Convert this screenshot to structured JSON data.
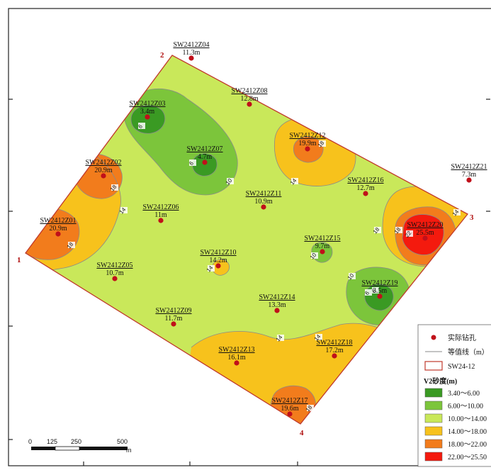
{
  "corners": [
    "1",
    "2",
    "3",
    "4"
  ],
  "boreholes": [
    {
      "id": "SW2412Z01",
      "value": "20.9m"
    },
    {
      "id": "SW2412Z02",
      "value": "20.9m"
    },
    {
      "id": "SW2412Z03",
      "value": "3.4m"
    },
    {
      "id": "SW2412Z04",
      "value": "11.3m"
    },
    {
      "id": "SW2412Z05",
      "value": "10.7m"
    },
    {
      "id": "SW2412Z06",
      "value": "11m"
    },
    {
      "id": "SW2412Z07",
      "value": "4.7m"
    },
    {
      "id": "SW2412Z08",
      "value": "12.8m"
    },
    {
      "id": "SW2412Z09",
      "value": "11.7m"
    },
    {
      "id": "SW2412Z10",
      "value": "14.2m"
    },
    {
      "id": "SW2412Z11",
      "value": "10.9m"
    },
    {
      "id": "SW2412Z12",
      "value": "19.9m"
    },
    {
      "id": "SW2412Z13",
      "value": "16.1m"
    },
    {
      "id": "SW2412Z14",
      "value": "13.3m"
    },
    {
      "id": "SW2412Z15",
      "value": "9.7m"
    },
    {
      "id": "SW2412Z16",
      "value": "12.7m"
    },
    {
      "id": "SW2412Z17",
      "value": "19.6m"
    },
    {
      "id": "SW2412Z18",
      "value": "17.2m"
    },
    {
      "id": "SW2412Z19",
      "value": "3.5m"
    },
    {
      "id": "SW2412Z20",
      "value": "25.5m"
    },
    {
      "id": "SW2412Z21",
      "value": "7.3m"
    }
  ],
  "contour_labels": [
    "6",
    "6",
    "6",
    "10",
    "14",
    "14",
    "14",
    "18",
    "18",
    "18",
    "18",
    "18",
    "14",
    "22",
    "10",
    "10",
    "14",
    "6",
    "14",
    "18"
  ],
  "legend": {
    "borehole": "实际钻孔",
    "contour": "等值线（m）",
    "boundary": "SW24-12",
    "title": "V2砂度(m)",
    "classes": [
      {
        "label": "3.40～6.00",
        "color": "#3a9a23"
      },
      {
        "label": "6.00～10.00",
        "color": "#7cc53b"
      },
      {
        "label": "10.00～14.00",
        "color": "#c9e85a"
      },
      {
        "label": "14.00～18.00",
        "color": "#f7c21c"
      },
      {
        "label": "18.00～22.00",
        "color": "#f27c1c"
      },
      {
        "label": "22.00～25.50",
        "color": "#f41a0e"
      }
    ]
  },
  "scale": {
    "ticks": [
      "0",
      "125",
      "250",
      "500"
    ],
    "unit": "m"
  },
  "colors": {
    "boundary": "#c0392b",
    "borehole": "#c0101a",
    "base": "#c9e85a"
  }
}
